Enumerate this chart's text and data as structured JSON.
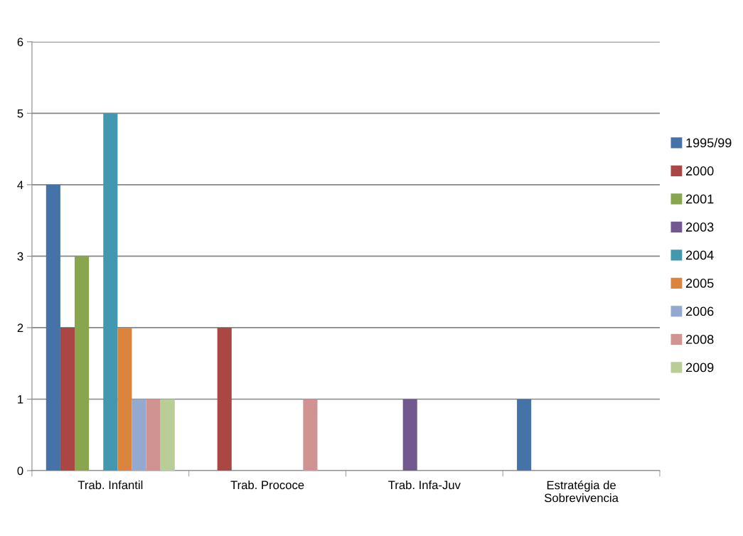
{
  "chart_data": {
    "type": "bar",
    "categories": [
      "Trab. Infantil",
      "Trab. Prococe",
      "Trab. Infa-Juv",
      "Estratégia de\nSobrevivencia"
    ],
    "series": [
      {
        "name": "1995/99",
        "color": "#4572a7",
        "values": [
          4,
          null,
          null,
          1
        ]
      },
      {
        "name": "2000",
        "color": "#aa4643",
        "values": [
          2,
          2,
          null,
          null
        ]
      },
      {
        "name": "2001",
        "color": "#89a54e",
        "values": [
          3,
          null,
          null,
          null
        ]
      },
      {
        "name": "2003",
        "color": "#71588f",
        "values": [
          null,
          null,
          1,
          null
        ]
      },
      {
        "name": "2004",
        "color": "#4198af",
        "values": [
          5,
          null,
          null,
          null
        ]
      },
      {
        "name": "2005",
        "color": "#db843d",
        "values": [
          2,
          null,
          null,
          null
        ]
      },
      {
        "name": "2006",
        "color": "#93a9cf",
        "values": [
          1,
          null,
          null,
          null
        ]
      },
      {
        "name": "2008",
        "color": "#d19392",
        "values": [
          1,
          1,
          null,
          null
        ]
      },
      {
        "name": "2009",
        "color": "#b9cd96",
        "values": [
          1,
          null,
          null,
          null
        ]
      }
    ],
    "ylim": [
      0,
      6
    ],
    "yticks": [
      0,
      1,
      2,
      3,
      4,
      5,
      6
    ],
    "grid": "y",
    "legend": "right"
  }
}
